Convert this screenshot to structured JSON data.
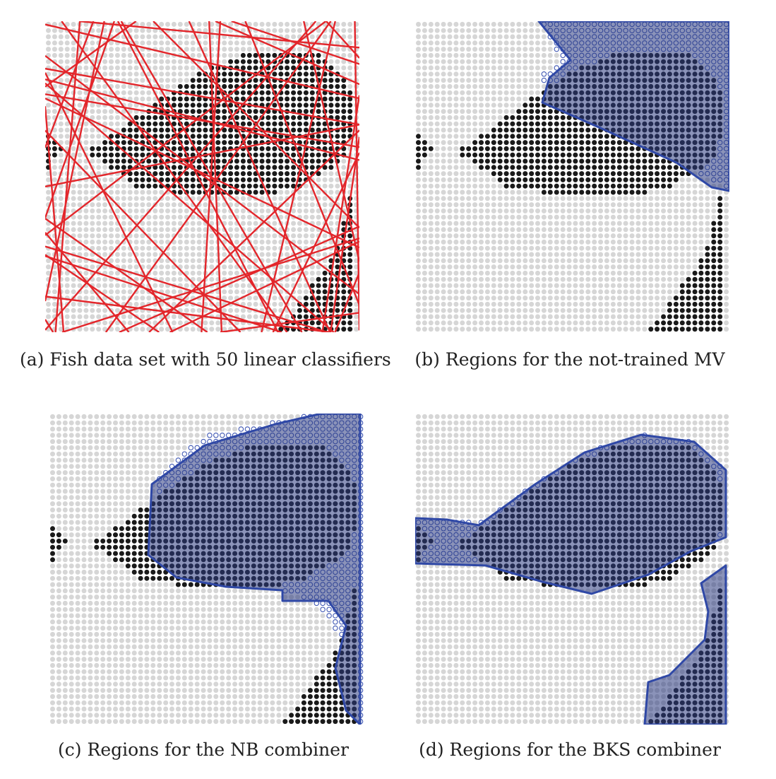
{
  "captions": {
    "a": "(a) Fish data set with 50 linear classifiers",
    "b": "(b) Regions for the not-trained MV",
    "c": "(c) Regions for the NB combiner",
    "d": "(d) Regions for the BKS combiner"
  },
  "grid": {
    "columns": 50,
    "rows": 50
  },
  "classifiers": {
    "count": 50
  },
  "colors": {
    "background_dot": "#d6d6d6",
    "fish_dot": "#1a1a1a",
    "classifier_line": "#e3262b",
    "region_fill": "#2c3b80",
    "region_fill_light": "#a9b4d8",
    "region_outline": "#2f48a6",
    "open_dot": "#3f57b3"
  }
}
